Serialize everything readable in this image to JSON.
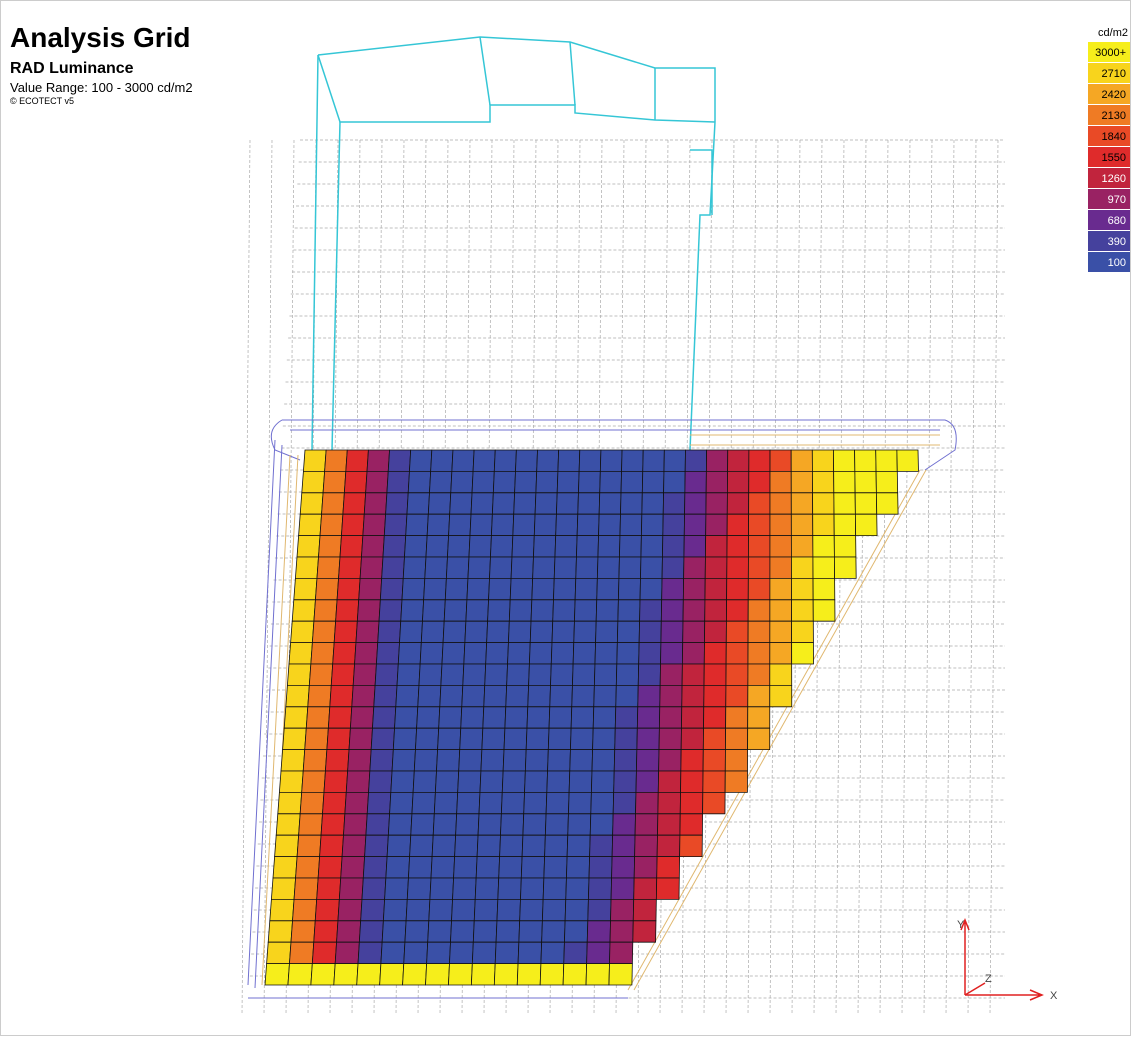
{
  "header": {
    "title": "Analysis Grid",
    "subtitle": "RAD Luminance",
    "range": "Value Range: 100 - 3000 cd/m2",
    "credit": "© ECOTECT v5"
  },
  "legend": {
    "unit": "cd/m2",
    "items": [
      {
        "label": "3000+",
        "color": "#f6ee1b"
      },
      {
        "label": "2710",
        "color": "#f8d41c"
      },
      {
        "label": "2420",
        "color": "#f5a724"
      },
      {
        "label": "2130",
        "color": "#ef7b24"
      },
      {
        "label": "1840",
        "color": "#e94a26"
      },
      {
        "label": "1550",
        "color": "#df2b2b"
      },
      {
        "label": "1260",
        "color": "#c1243d"
      },
      {
        "label": "970",
        "color": "#992263"
      },
      {
        "label": "680",
        "color": "#692b8f"
      },
      {
        "label": "390",
        "color": "#45419d"
      },
      {
        "label": "100",
        "color": "#3a50a7"
      }
    ]
  },
  "axes": {
    "y": "Y",
    "z": "Z",
    "x": "X"
  }
}
